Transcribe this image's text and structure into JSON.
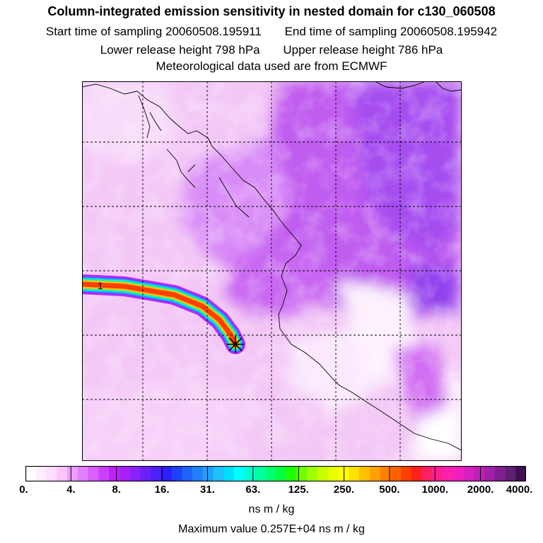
{
  "header": {
    "title": "Column-integrated emission sensitivity in nested domain for c130_060508",
    "start_label": "Start time of sampling 20060508.195911",
    "end_label": "End time of sampling 20060508.195942",
    "lower_label": "Lower release height  798 hPa",
    "upper_label": "Upper release height  786 hPa",
    "met_label": "Meteorological data used are from ECMWF"
  },
  "map": {
    "plume_marker": "1",
    "release_marker_icon": "star-icon",
    "grid": true,
    "plume_colors": [
      "#ff4000",
      "#ffbf00",
      "#00ffb0",
      "#00bfff",
      "#8040ff",
      "#c020ff"
    ]
  },
  "colorbar": {
    "tick_labels": [
      "0.",
      "4.",
      "8.",
      "16.",
      "31.",
      "63.",
      "125.",
      "250.",
      "500.",
      "1000.",
      "2000.",
      "4000."
    ],
    "colors": [
      "#ffffff",
      "#ffeeff",
      "#ffddff",
      "#fcc4fc",
      "#eca0fc",
      "#e280fc",
      "#d860fc",
      "#cc40fc",
      "#c020fc",
      "#a820fc",
      "#8c20fc",
      "#6c20f8",
      "#4c20fc",
      "#2c20fc",
      "#2040fc",
      "#2060fc",
      "#2080fc",
      "#20a0fc",
      "#20c0fc",
      "#00e0fc",
      "#00ffff",
      "#00ffd0",
      "#00ffa0",
      "#00ff70",
      "#00ff40",
      "#20ff00",
      "#70ff00",
      "#a0ff00",
      "#c8ff00",
      "#e8ff00",
      "#ffff00",
      "#ffe000",
      "#ffc000",
      "#ffa000",
      "#ff8000",
      "#ff6000",
      "#ff4000",
      "#ff2020",
      "#ff2060",
      "#ff2090",
      "#ff20b0",
      "#f020c0",
      "#d820c0",
      "#c020b8",
      "#a020a8",
      "#802090",
      "#602070",
      "#401050"
    ],
    "units": "ns m / kg"
  },
  "footer": {
    "max_value": "Maximum value  0.257E+04 ns m / kg"
  }
}
